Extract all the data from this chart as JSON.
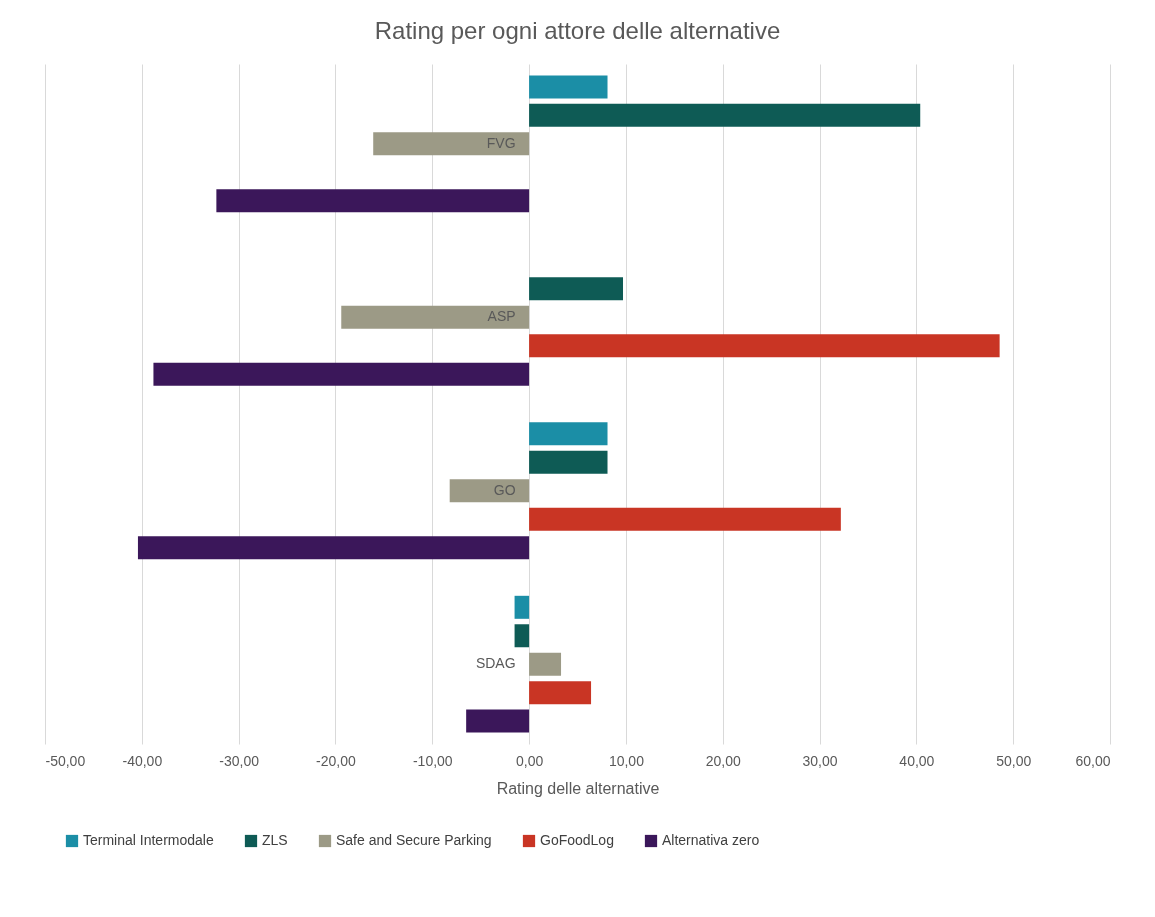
{
  "chart_data": {
    "type": "bar",
    "orientation": "horizontal",
    "title": "Rating per ogni attore delle alternative",
    "xlabel": "Rating delle alternative",
    "categories": [
      "FVG",
      "ASP",
      "GO",
      "SDAG"
    ],
    "series": [
      {
        "name": "Terminal Intermodale",
        "color": "#1b8ea6",
        "values": [
          8.1,
          null,
          8.1,
          -1.5
        ]
      },
      {
        "name": "ZLS",
        "color": "#0e5b55",
        "values": [
          40.4,
          9.7,
          8.1,
          -1.5
        ]
      },
      {
        "name": "Safe and Secure Parking",
        "color": "#9c9a86",
        "values": [
          -16.1,
          -19.4,
          -8.2,
          3.3
        ]
      },
      {
        "name": "GoFoodLog",
        "color": "#c93524",
        "values": [
          null,
          48.6,
          32.2,
          6.4
        ]
      },
      {
        "name": "Alternativa zero",
        "color": "#3b175a",
        "values": [
          -32.3,
          -38.8,
          -40.4,
          -6.5
        ]
      }
    ],
    "xlim": [
      -50,
      60
    ],
    "xticks": [
      {
        "value": -50,
        "label": "-50,00"
      },
      {
        "value": -40,
        "label": "-40,00"
      },
      {
        "value": -30,
        "label": "-30,00"
      },
      {
        "value": -20,
        "label": "-20,00"
      },
      {
        "value": -10,
        "label": "-10,00"
      },
      {
        "value": 0,
        "label": "0,00"
      },
      {
        "value": 10,
        "label": "10,00"
      },
      {
        "value": 20,
        "label": "20,00"
      },
      {
        "value": 30,
        "label": "30,00"
      },
      {
        "value": 40,
        "label": "40,00"
      },
      {
        "value": 50,
        "label": "50,00"
      },
      {
        "value": 60,
        "label": "60,00"
      }
    ],
    "grid": "x",
    "legend": "bottom"
  }
}
